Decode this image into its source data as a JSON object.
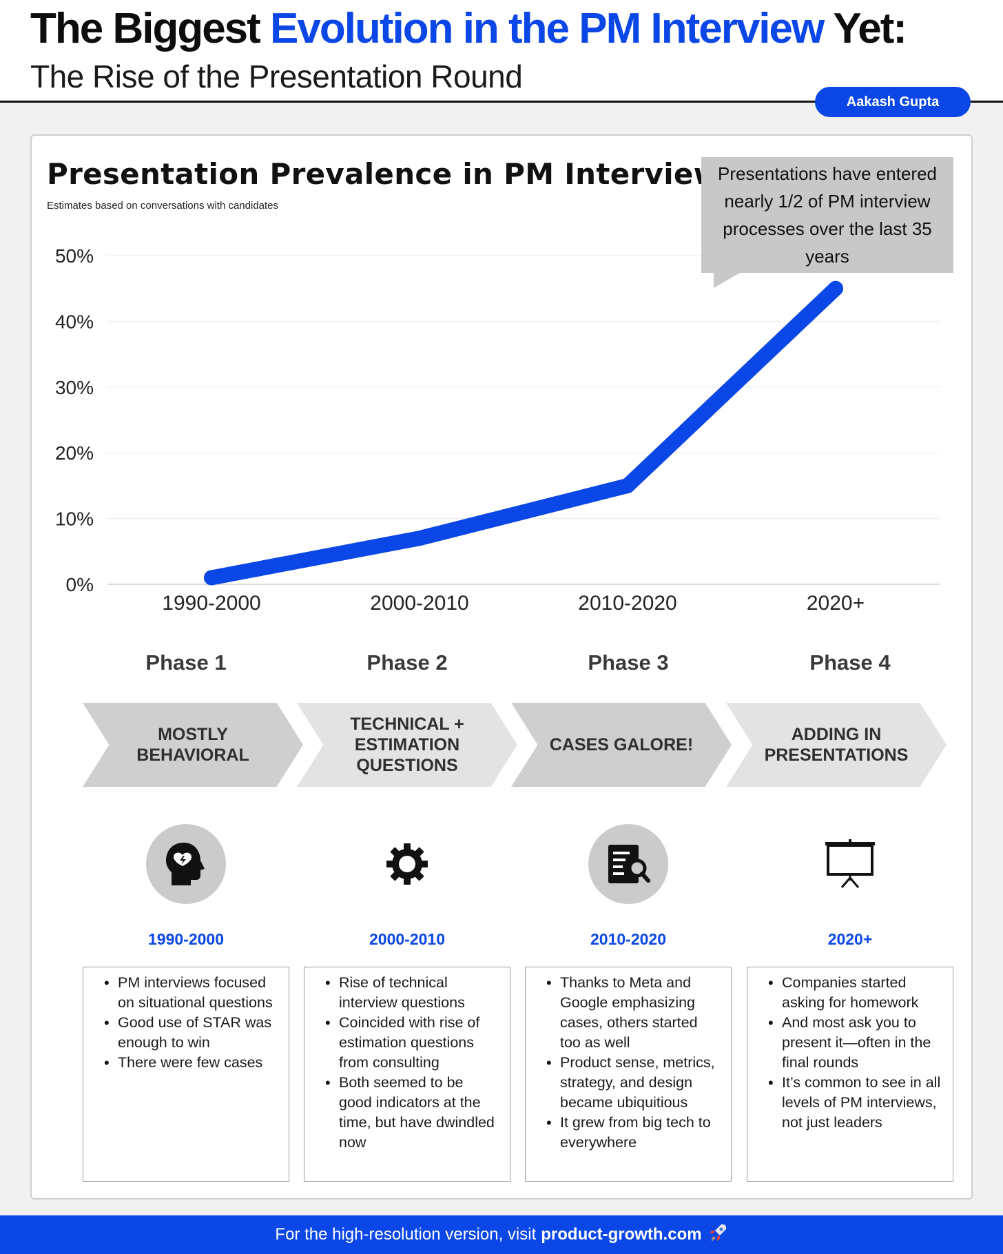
{
  "header": {
    "title_part1": "The Biggest",
    "title_accent": "Evolution in the PM Interview",
    "title_part3": "Yet:",
    "subtitle": "The Rise of the Presentation Round",
    "author": "Aakash Gupta"
  },
  "callout": {
    "text": "Presentations have entered nearly 1/2 of PM interview processes over the last 35 years"
  },
  "chart_data": {
    "type": "line",
    "title": "Presentation Prevalence in PM Interviews",
    "subtitle": "Estimates based on conversations with candidates",
    "categories": [
      "1990-2000",
      "2000-2010",
      "2010-2020",
      "2020+"
    ],
    "values": [
      1,
      7,
      15,
      45
    ],
    "ylim": [
      0,
      50
    ],
    "yticks": [
      "0%",
      "10%",
      "20%",
      "30%",
      "40%",
      "50%"
    ],
    "ytick_values": [
      0,
      10,
      20,
      30,
      40,
      50
    ],
    "grid": true,
    "line_color": "#0b47e6"
  },
  "phases": [
    {
      "label": "Phase 1",
      "arrow_text": "MOSTLY BEHAVIORAL",
      "icon": "head-heart-icon",
      "year": "1990-2000",
      "bullets": [
        "PM interviews focused on situational questions",
        "Good use of STAR was enough to win",
        "There were few cases"
      ]
    },
    {
      "label": "Phase 2",
      "arrow_text": "TECHNICAL + ESTIMATION QUESTIONS",
      "icon": "gear-icon",
      "year": "2000-2010",
      "bullets": [
        "Rise of technical interview questions",
        "Coincided with rise of estimation questions from consulting",
        "Both seemed to be good indicators at the time, but have dwindled now"
      ]
    },
    {
      "label": "Phase 3",
      "arrow_text": "CASES GALORE!",
      "icon": "document-search-icon",
      "year": "2010-2020",
      "bullets": [
        "Thanks to Meta and Google emphasizing cases, others started too as well",
        "Product sense, metrics, strategy, and design became ubiquitious",
        "It grew from big tech to everywhere"
      ]
    },
    {
      "label": "Phase 4",
      "arrow_text": "ADDING IN PRESENTATIONS",
      "icon": "presentation-board-icon",
      "year": "2020+",
      "bullets": [
        "Companies started asking for homework",
        "And most ask you to present it—often in the final rounds",
        "It’s common to see in all levels of PM interviews, not just leaders"
      ]
    }
  ],
  "footer": {
    "text": "For the high-resolution version, visit",
    "link": "product-growth.com",
    "icon": "rocket-icon"
  },
  "colors": {
    "accent": "#0b47e6",
    "arrow_dark": "#cfcfcf",
    "arrow_light": "#e3e3e3"
  }
}
